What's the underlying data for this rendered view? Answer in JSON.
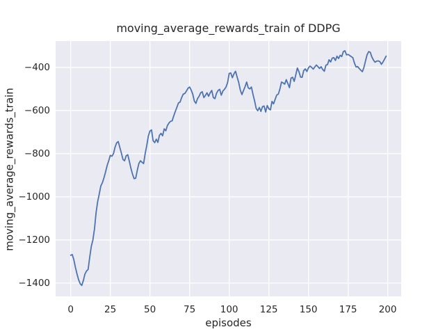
{
  "chart_data": {
    "type": "line",
    "title": "moving_average_rewards_train of DDPG",
    "xlabel": "episodes",
    "ylabel": "moving_average_rewards_train",
    "x_ticks": [
      0,
      25,
      50,
      75,
      100,
      125,
      150,
      175,
      200
    ],
    "x_tick_labels": [
      "0",
      "25",
      "50",
      "75",
      "100",
      "125",
      "150",
      "175",
      "200"
    ],
    "y_ticks": [
      -400,
      -600,
      -800,
      -1000,
      -1200,
      -1400
    ],
    "y_tick_labels": [
      "−400",
      "−600",
      "−800",
      "−1000",
      "−1200",
      "−1400"
    ],
    "xlim": [
      -9.5,
      208.5
    ],
    "ylim": [
      -1462,
      -278
    ],
    "grid": true,
    "legend": "none",
    "colors": {
      "line": "#4c72b0",
      "plot_background": "#eaeaf2",
      "grid": "#ffffff",
      "text": "#262626",
      "figure_background": "#ffffff"
    },
    "series": [
      {
        "name": "moving_average_rewards_train",
        "x_start": 0,
        "x_step": 1,
        "values": [
          -1271,
          -1268,
          -1292,
          -1328,
          -1358,
          -1385,
          -1403,
          -1411,
          -1388,
          -1358,
          -1344,
          -1337,
          -1280,
          -1230,
          -1200,
          -1150,
          -1075,
          -1023,
          -988,
          -950,
          -935,
          -912,
          -885,
          -855,
          -833,
          -808,
          -812,
          -800,
          -770,
          -750,
          -744,
          -771,
          -798,
          -827,
          -833,
          -810,
          -805,
          -835,
          -868,
          -895,
          -916,
          -914,
          -878,
          -846,
          -833,
          -840,
          -846,
          -800,
          -762,
          -718,
          -695,
          -690,
          -740,
          -749,
          -733,
          -748,
          -715,
          -706,
          -717,
          -685,
          -694,
          -670,
          -658,
          -650,
          -648,
          -625,
          -604,
          -585,
          -565,
          -561,
          -540,
          -524,
          -521,
          -510,
          -497,
          -491,
          -505,
          -524,
          -556,
          -567,
          -545,
          -534,
          -518,
          -513,
          -540,
          -530,
          -518,
          -534,
          -518,
          -507,
          -540,
          -545,
          -520,
          -507,
          -502,
          -529,
          -510,
          -502,
          -491,
          -470,
          -428,
          -426,
          -448,
          -430,
          -418,
          -445,
          -470,
          -505,
          -526,
          -508,
          -490,
          -468,
          -495,
          -500,
          -491,
          -525,
          -555,
          -590,
          -601,
          -586,
          -604,
          -582,
          -579,
          -607,
          -577,
          -592,
          -597,
          -558,
          -569,
          -548,
          -528,
          -524,
          -500,
          -468,
          -472,
          -478,
          -457,
          -475,
          -494,
          -450,
          -446,
          -465,
          -435,
          -403,
          -420,
          -445,
          -446,
          -415,
          -407,
          -419,
          -402,
          -394,
          -400,
          -408,
          -398,
          -389,
          -397,
          -405,
          -397,
          -410,
          -418,
          -390,
          -387,
          -365,
          -375,
          -357,
          -355,
          -368,
          -348,
          -359,
          -344,
          -350,
          -327,
          -323,
          -342,
          -340,
          -345,
          -350,
          -355,
          -380,
          -398,
          -396,
          -405,
          -413,
          -420,
          -400,
          -370,
          -341,
          -327,
          -330,
          -352,
          -366,
          -376,
          -371,
          -370,
          -373,
          -386,
          -375,
          -362,
          -348
        ]
      }
    ]
  }
}
